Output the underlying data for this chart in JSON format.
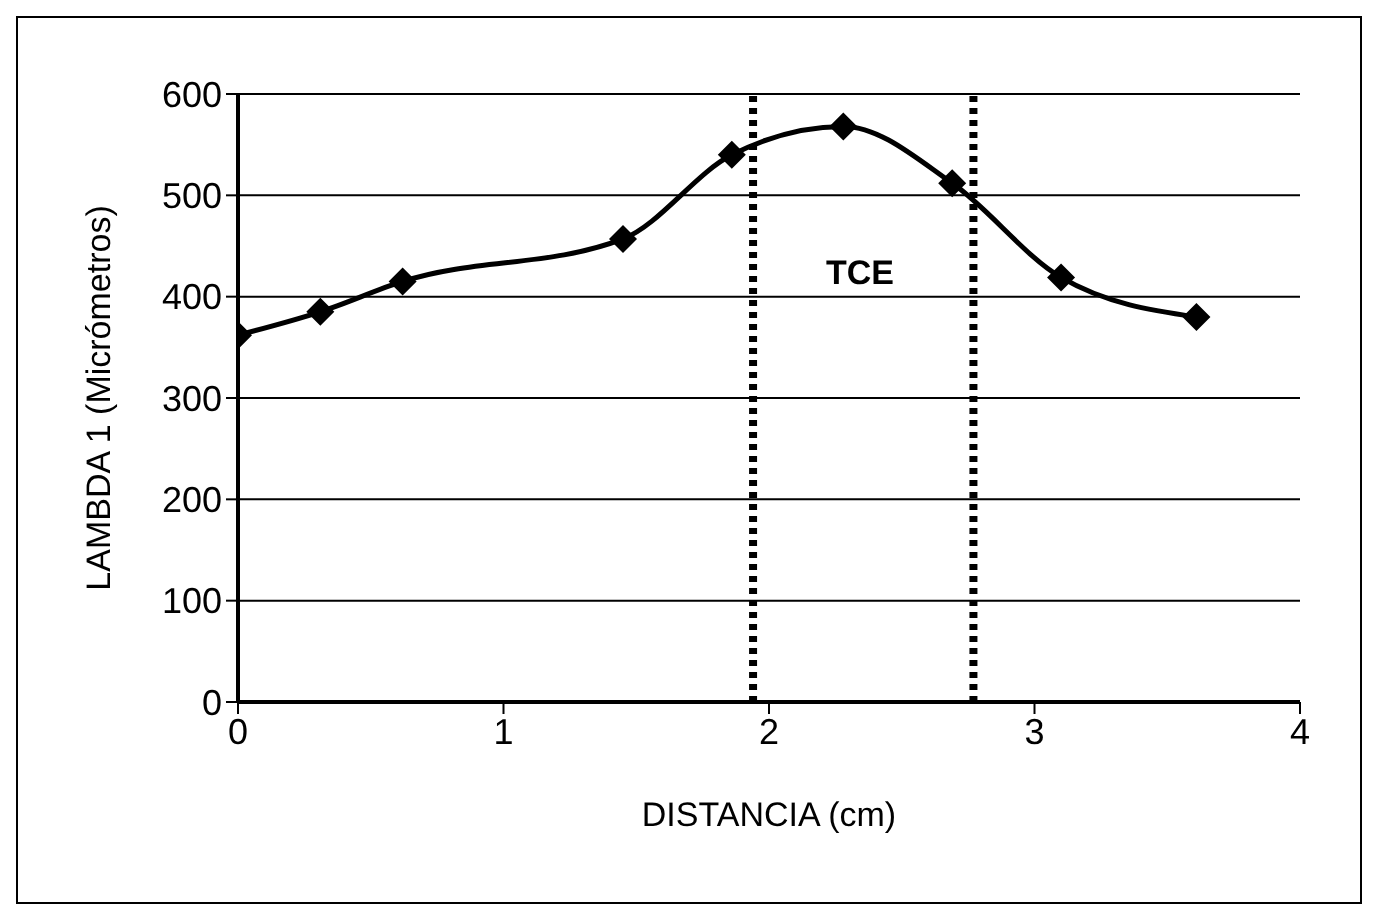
{
  "chart_data": {
    "type": "line",
    "xlabel": "DISTANCIA (cm)",
    "ylabel": "LAMBDA 1 (Micrómetros)",
    "x": [
      0,
      0.31,
      0.62,
      1.45,
      1.86,
      2.28,
      2.69,
      3.1,
      3.61
    ],
    "series": [
      {
        "color": "#000000",
        "values": [
          362,
          385,
          415,
          457,
          540,
          568,
          512,
          419,
          380
        ]
      }
    ],
    "xlim": [
      0,
      4
    ],
    "xticks": [
      0,
      1,
      2,
      3,
      4
    ],
    "ylim": [
      0,
      600
    ],
    "yticks": [
      0,
      100,
      200,
      300,
      400,
      500,
      600
    ],
    "grid": "y",
    "marker": "diamond",
    "line_style": "solid",
    "ref_lines": [
      {
        "axis": "x",
        "value": 1.94,
        "color": "#000000",
        "line_style": "dotted"
      },
      {
        "axis": "x",
        "value": 2.77,
        "color": "#000000",
        "line_style": "dotted"
      }
    ],
    "annotations": [
      "TCE"
    ]
  }
}
